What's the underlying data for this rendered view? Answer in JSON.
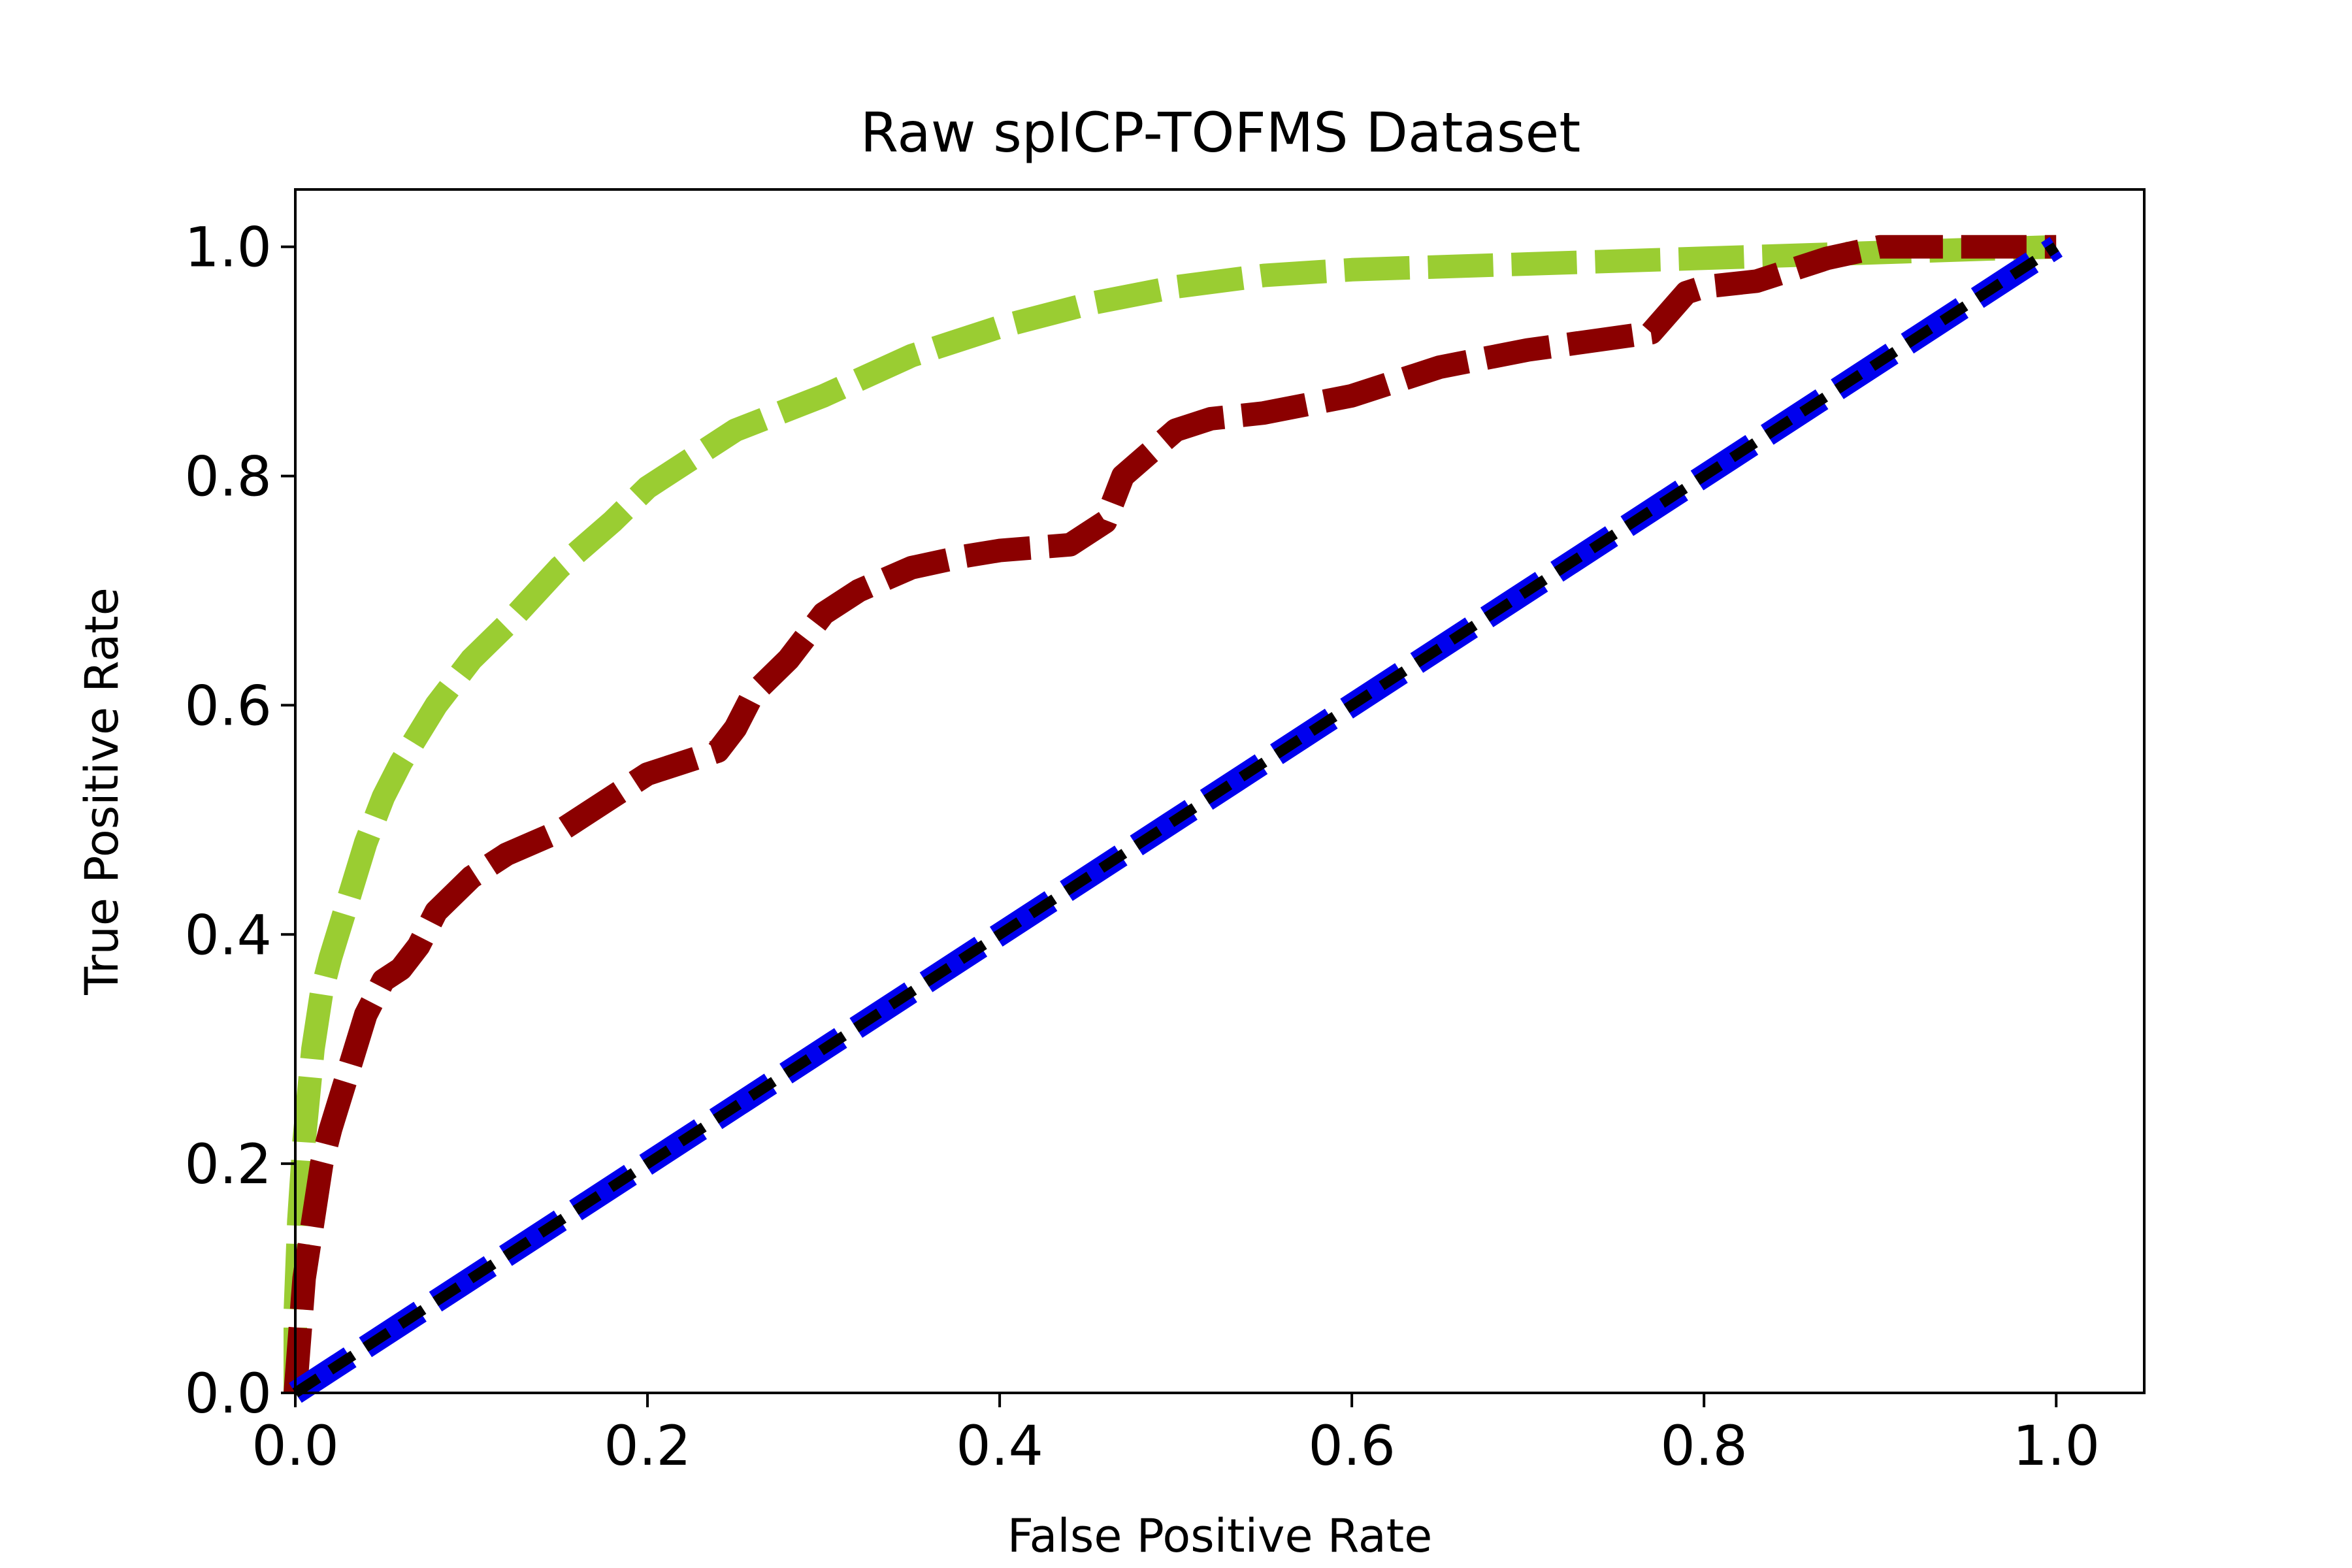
{
  "chart_data": {
    "type": "line",
    "title": "Raw spICP-TOFMS Dataset",
    "xlabel": "False Positive Rate",
    "ylabel": "True Positive Rate",
    "xlim": [
      0.0,
      1.05
    ],
    "ylim": [
      0.0,
      1.05
    ],
    "x_ticks": [
      "0.0",
      "0.2",
      "0.4",
      "0.6",
      "0.8",
      "1.0"
    ],
    "y_ticks": [
      "0.0",
      "0.2",
      "0.4",
      "0.6",
      "0.8",
      "1.0"
    ],
    "grid": false,
    "legend": "none",
    "series": [
      {
        "color": "#9acd32",
        "style": "dashed",
        "x": [
          0.0,
          0.0,
          0.002,
          0.005,
          0.01,
          0.015,
          0.02,
          0.03,
          0.04,
          0.05,
          0.06,
          0.08,
          0.1,
          0.12,
          0.15,
          0.18,
          0.2,
          0.25,
          0.3,
          0.35,
          0.4,
          0.45,
          0.5,
          0.55,
          0.6,
          0.7,
          0.8,
          0.9,
          1.0
        ],
        "y": [
          0.0,
          0.07,
          0.15,
          0.22,
          0.3,
          0.35,
          0.38,
          0.43,
          0.48,
          0.52,
          0.55,
          0.6,
          0.64,
          0.67,
          0.72,
          0.76,
          0.79,
          0.84,
          0.87,
          0.905,
          0.93,
          0.95,
          0.965,
          0.975,
          0.98,
          0.985,
          0.99,
          0.995,
          1.0
        ]
      },
      {
        "color": "#8b0000",
        "style": "dashed",
        "x": [
          0.0,
          0.005,
          0.01,
          0.015,
          0.02,
          0.03,
          0.04,
          0.05,
          0.06,
          0.07,
          0.08,
          0.1,
          0.12,
          0.15,
          0.18,
          0.2,
          0.24,
          0.25,
          0.26,
          0.28,
          0.3,
          0.32,
          0.35,
          0.38,
          0.4,
          0.44,
          0.46,
          0.47,
          0.5,
          0.52,
          0.55,
          0.6,
          0.65,
          0.7,
          0.77,
          0.79,
          0.8,
          0.83,
          0.85,
          0.87,
          0.9,
          1.0
        ],
        "y": [
          0.0,
          0.1,
          0.15,
          0.2,
          0.23,
          0.28,
          0.33,
          0.36,
          0.37,
          0.39,
          0.42,
          0.45,
          0.47,
          0.49,
          0.52,
          0.54,
          0.56,
          0.58,
          0.61,
          0.64,
          0.68,
          0.7,
          0.72,
          0.73,
          0.735,
          0.74,
          0.76,
          0.8,
          0.84,
          0.85,
          0.855,
          0.87,
          0.895,
          0.91,
          0.925,
          0.96,
          0.965,
          0.97,
          0.98,
          0.99,
          1.0,
          1.0
        ]
      },
      {
        "color": "#0000ee",
        "style": "dashed",
        "x": [
          0.0,
          1.0
        ],
        "y": [
          0.0,
          1.0
        ]
      },
      {
        "color": "#000000",
        "style": "dotted",
        "x": [
          0.0,
          1.0
        ],
        "y": [
          0.0,
          1.0
        ]
      }
    ]
  }
}
